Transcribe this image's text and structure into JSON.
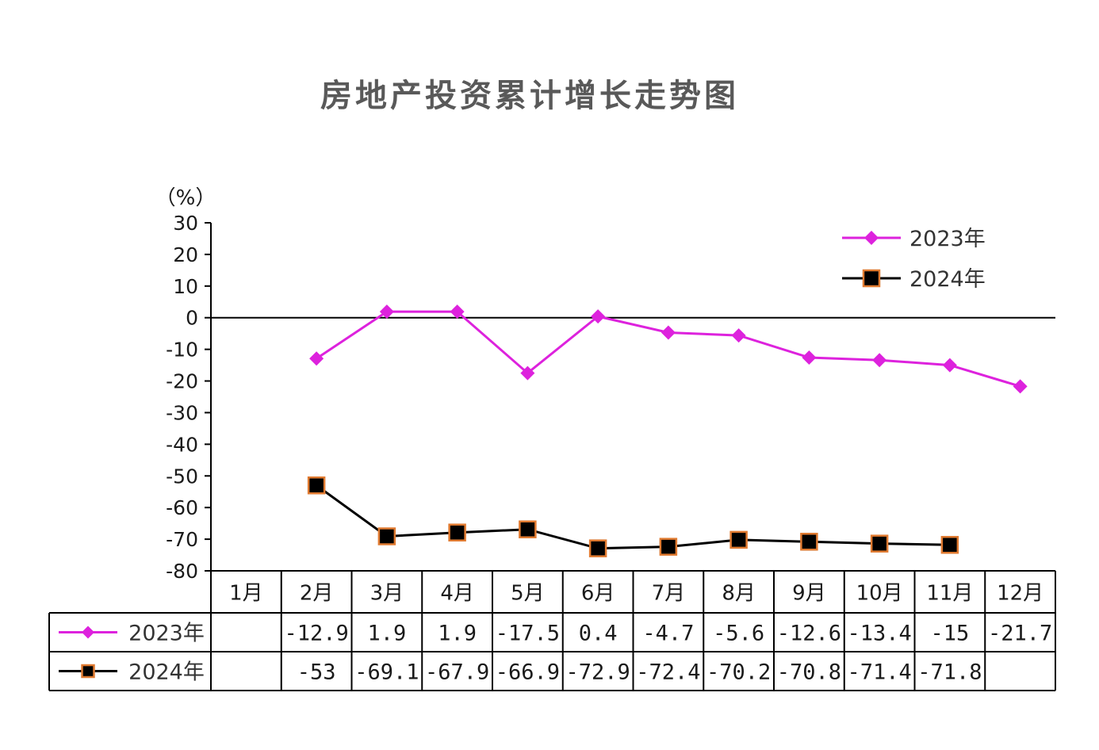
{
  "chart_data": {
    "type": "line",
    "title": "房地产投资累计增长走势图",
    "unit_label": "（%）",
    "categories": [
      "1月",
      "2月",
      "3月",
      "4月",
      "5月",
      "6月",
      "7月",
      "8月",
      "9月",
      "10月",
      "11月",
      "12月"
    ],
    "ylim": [
      -80,
      30
    ],
    "yticks": [
      30,
      20,
      10,
      0,
      -10,
      -20,
      -30,
      -40,
      -50,
      -60,
      -70,
      -80
    ],
    "grid": false,
    "legend_position": "top-right",
    "series": [
      {
        "name": "2023年",
        "color": "#DD22DD",
        "marker": "diamond",
        "values": [
          null,
          -12.9,
          1.9,
          1.9,
          -17.5,
          0.4,
          -4.7,
          -5.6,
          -12.6,
          -13.4,
          -15,
          -21.7
        ],
        "labels": [
          "",
          "-12.9",
          "1.9",
          "1.9",
          "-17.5",
          "0.4",
          "-4.7",
          "-5.6",
          "-12.6",
          "-13.4",
          "-15",
          "-21.7"
        ]
      },
      {
        "name": "2024年",
        "color": "#000000",
        "marker": "square",
        "marker_border": "#E07A30",
        "values": [
          null,
          -53,
          -69.1,
          -67.9,
          -66.9,
          -72.9,
          -72.4,
          -70.2,
          -70.8,
          -71.4,
          -71.8,
          null
        ],
        "labels": [
          "",
          "-53",
          "-69.1",
          "-67.9",
          "-66.9",
          "-72.9",
          "-72.4",
          "-70.2",
          "-70.8",
          "-71.4",
          "-71.8",
          ""
        ]
      }
    ]
  }
}
